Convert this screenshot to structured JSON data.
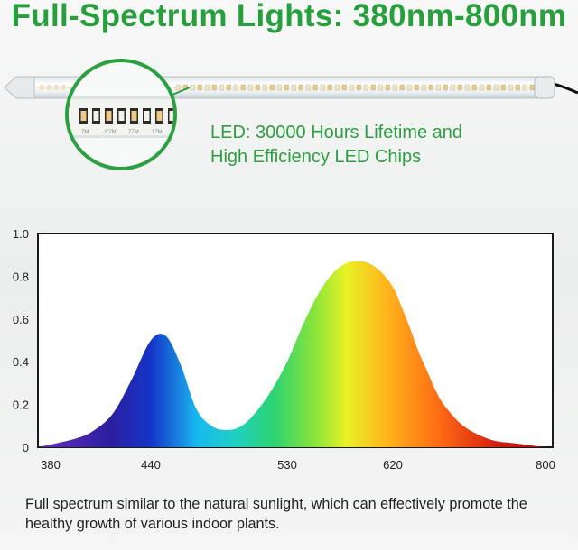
{
  "title": "Full-Spectrum Lights: 380nm-800nm",
  "product": {
    "caption_line1": "LED: 30000 Hours Lifetime and",
    "caption_line2": "High Efficiency LED Chips",
    "chip_labels": [
      "7M",
      "C7M",
      "77M",
      "17M"
    ],
    "accent_color": "#2aa040"
  },
  "chart_data": {
    "type": "area",
    "x_ticks": [
      "380",
      "440",
      "530",
      "620",
      "800"
    ],
    "y_ticks": [
      "1.0",
      "0.8",
      "0.6",
      "0.4",
      "0.2",
      "0"
    ],
    "xlim": [
      380,
      800
    ],
    "ylim": [
      0,
      1.0
    ],
    "grid": false,
    "legend": "none",
    "fill": "visible-spectrum gradient (violet to red)",
    "series": [
      {
        "x": [
          380,
          400,
          410,
          420,
          430,
          440,
          450,
          460,
          470,
          480,
          490,
          500,
          510,
          520,
          530,
          540,
          550,
          560,
          570,
          580,
          590,
          600,
          610,
          620,
          630,
          640,
          650,
          660,
          670,
          680,
          700,
          720,
          740,
          760,
          780,
          800
        ],
        "values": [
          0.0,
          0.04,
          0.08,
          0.16,
          0.32,
          0.5,
          0.52,
          0.38,
          0.18,
          0.1,
          0.08,
          0.1,
          0.17,
          0.27,
          0.4,
          0.53,
          0.65,
          0.75,
          0.82,
          0.86,
          0.87,
          0.86,
          0.82,
          0.75,
          0.66,
          0.56,
          0.45,
          0.36,
          0.27,
          0.2,
          0.11,
          0.06,
          0.03,
          0.02,
          0.01,
          0.0
        ]
      }
    ]
  },
  "footer": {
    "text": "Full spectrum similar to the natural sunlight, which can effectively promote the healthy growth of various indoor plants."
  }
}
